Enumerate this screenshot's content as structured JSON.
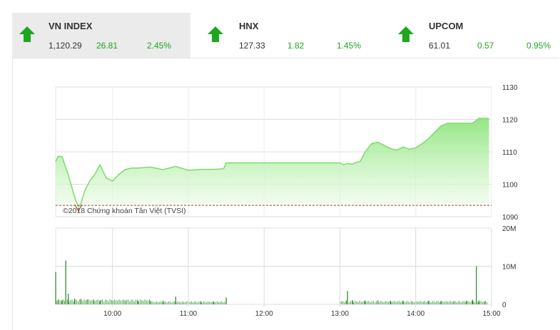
{
  "indices": [
    {
      "name": "VN INDEX",
      "value": "1,120.29",
      "change": "26.81",
      "percent": "2.45%",
      "active": true
    },
    {
      "name": "HNX",
      "value": "127.33",
      "change": "1.82",
      "percent": "1.45%",
      "active": false
    },
    {
      "name": "UPCOM",
      "value": "61.01",
      "change": "0.57",
      "percent": "0.95%",
      "active": false
    }
  ],
  "icons": {
    "trend": "arrow-up-icon"
  },
  "colors": {
    "up": "#1ea71e",
    "line": "#7bdc6b",
    "ref": "#c0392b",
    "volume": "#2f8f2f"
  },
  "chart_data": {
    "type": "area",
    "watermark": "©2018 Chứng khoán Tân Việt (TVSI)",
    "x_ticks": [
      "10:00",
      "11:00",
      "12:00",
      "13:00",
      "14:00",
      "15:00"
    ],
    "price_ticks": [
      "1130",
      "1120",
      "1110",
      "1100",
      "1090"
    ],
    "volume_ticks": [
      "20M",
      "10M",
      "0"
    ],
    "ylim": [
      1090,
      1130
    ],
    "reference": 1093.48,
    "price": {
      "x": [
        "09:15",
        "09:17",
        "09:20",
        "09:25",
        "09:30",
        "09:33",
        "09:35",
        "09:38",
        "09:42",
        "09:46",
        "09:50",
        "09:55",
        "10:00",
        "10:05",
        "10:10",
        "10:15",
        "10:20",
        "10:30",
        "10:40",
        "10:50",
        "11:00",
        "11:10",
        "11:20",
        "11:28",
        "11:30",
        "11:40",
        "12:00",
        "12:30",
        "13:00",
        "13:03",
        "13:06",
        "13:10",
        "13:13",
        "13:16",
        "13:20",
        "13:25",
        "13:30",
        "13:35",
        "13:40",
        "13:45",
        "13:50",
        "13:55",
        "14:00",
        "14:05",
        "14:10",
        "14:15",
        "14:20",
        "14:25",
        "14:30",
        "14:35",
        "14:40",
        "14:45",
        "14:50",
        "14:55",
        "14:58"
      ],
      "y": [
        1107,
        1108.7,
        1108.5,
        1103,
        1096,
        1093,
        1094,
        1098,
        1101,
        1103,
        1106,
        1102,
        1101,
        1103,
        1104.5,
        1105,
        1105,
        1105.3,
        1104.5,
        1105.5,
        1104.3,
        1104.6,
        1104.6,
        1104.8,
        1106.6,
        1106.6,
        1106.6,
        1106.6,
        1106.6,
        1106,
        1106.4,
        1106.2,
        1106.8,
        1107,
        1110,
        1112.5,
        1113,
        1112,
        1111,
        1110.5,
        1111.5,
        1110.8,
        1111.2,
        1112.5,
        1114,
        1116,
        1118,
        1118.8,
        1118.8,
        1118.8,
        1118.8,
        1118.8,
        1120.3,
        1120.3,
        1120.3
      ]
    },
    "volume": {
      "x": [
        "09:15",
        "09:17",
        "09:20",
        "09:23",
        "09:25",
        "09:30",
        "09:35",
        "09:40",
        "09:45",
        "09:50",
        "10:00",
        "10:10",
        "10:20",
        "10:30",
        "10:40",
        "10:50",
        "11:00",
        "11:10",
        "11:20",
        "11:30",
        "13:00",
        "13:05",
        "13:06",
        "13:10",
        "13:20",
        "13:30",
        "13:40",
        "13:50",
        "14:00",
        "14:10",
        "14:20",
        "14:30",
        "14:40",
        "14:45",
        "14:48",
        "14:50",
        "14:55"
      ],
      "values": [
        8.5,
        1.2,
        1.0,
        11.5,
        2.8,
        1.5,
        1.4,
        1.3,
        1.2,
        1.0,
        1.0,
        1.0,
        0.9,
        0.9,
        0.9,
        2.0,
        0.8,
        0.8,
        0.7,
        1.8,
        0.8,
        1.0,
        3.5,
        1.1,
        1.0,
        1.0,
        0.9,
        0.9,
        0.9,
        0.9,
        0.9,
        0.8,
        0.9,
        1.2,
        10.0,
        1.0,
        0.8
      ],
      "ylim": [
        0,
        20
      ]
    }
  }
}
